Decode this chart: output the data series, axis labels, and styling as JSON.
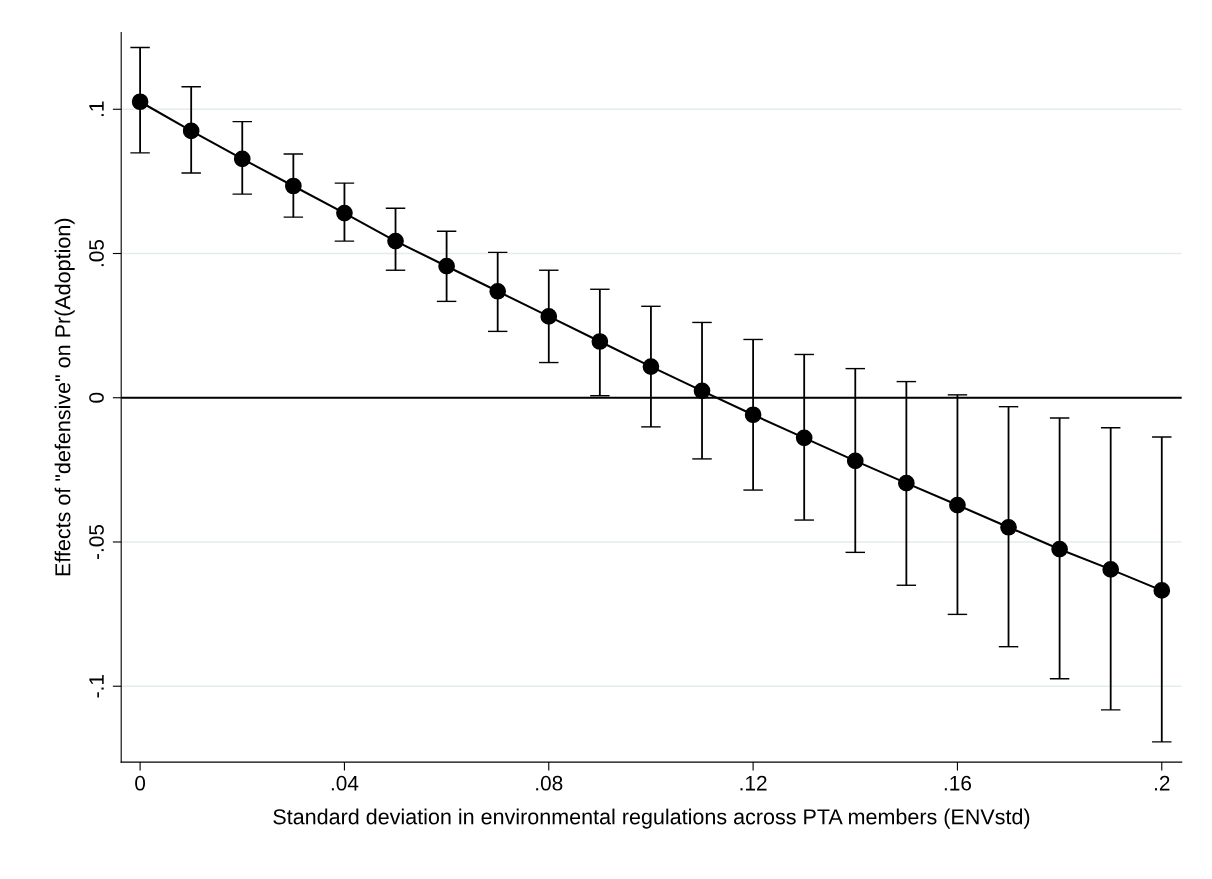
{
  "chart_data": {
    "type": "line",
    "xlabel": "Standard deviation in environmental regulations across PTA members (ENVstd)",
    "ylabel": "Effects of \"defensive\" on Pr(Adoption)",
    "x": [
      0,
      0.01,
      0.02,
      0.03,
      0.04,
      0.05,
      0.06,
      0.07,
      0.08,
      0.09,
      0.1,
      0.11,
      0.12,
      0.13,
      0.14,
      0.15,
      0.16,
      0.17,
      0.18,
      0.19,
      0.2
    ],
    "series": [
      {
        "color": "#000000",
        "values": [
          0.1026,
          0.0925,
          0.0828,
          0.0734,
          0.064,
          0.0543,
          0.0456,
          0.0369,
          0.0282,
          0.0195,
          0.0108,
          0.0024,
          -0.0059,
          -0.0139,
          -0.0219,
          -0.0296,
          -0.0372,
          -0.0449,
          -0.0525,
          -0.0595,
          -0.0668
        ],
        "errors": [
          [
            0.0849,
            0.1214
          ],
          [
            0.0779,
            0.1078
          ],
          [
            0.0706,
            0.0957
          ],
          [
            0.0626,
            0.0845
          ],
          [
            0.0543,
            0.0744
          ],
          [
            0.0442,
            0.0657
          ],
          [
            0.0334,
            0.0577
          ],
          [
            0.023,
            0.0504
          ],
          [
            0.0122,
            0.0442
          ],
          [
            0.0007,
            0.0376
          ],
          [
            -0.0101,
            0.0317
          ],
          [
            -0.0212,
            0.0261
          ],
          [
            -0.032,
            0.0202
          ],
          [
            -0.0424,
            0.015
          ],
          [
            -0.0536,
            0.0101
          ],
          [
            -0.065,
            0.0056
          ],
          [
            -0.0751,
            0.001
          ],
          [
            -0.0863,
            -0.0031
          ],
          [
            -0.0974,
            -0.007
          ],
          [
            -0.1082,
            -0.0104
          ],
          [
            -0.1193,
            -0.0136
          ]
        ]
      }
    ],
    "marker": "circle",
    "line_style": "solid",
    "grid": "y",
    "legend": false,
    "xlim": [
      -0.0037,
      0.2039
    ],
    "ylim": [
      -0.1263,
      0.1266
    ],
    "xticks": [
      0,
      {
        "value": 0.04,
        "label": ".04"
      },
      {
        "value": 0.08,
        "label": ".08"
      },
      {
        "value": 0.12,
        "label": ".12"
      },
      {
        "value": 0.16,
        "label": ".16"
      },
      {
        "value": 0.2,
        "label": ".2"
      }
    ],
    "yticks": [
      {
        "value": -0.1,
        "label": "-.1"
      },
      {
        "value": -0.05,
        "label": "-.05"
      },
      0,
      {
        "value": 0.05,
        "label": ".05"
      },
      {
        "value": 0.1,
        "label": ".1"
      }
    ],
    "ref_lines": [
      {
        "axis": "y",
        "value": 0,
        "color": "#000000"
      }
    ]
  }
}
